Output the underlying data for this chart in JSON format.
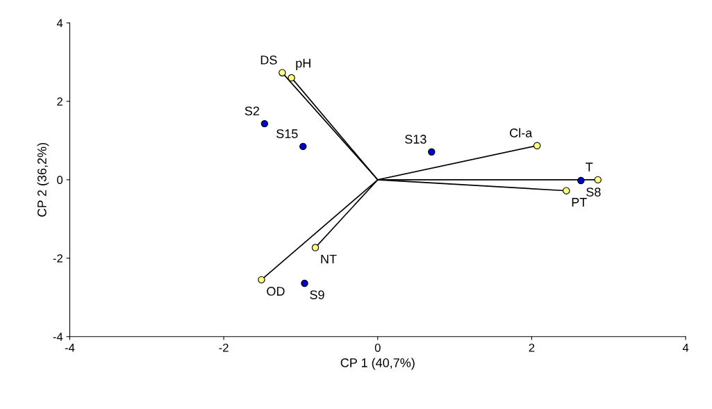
{
  "chart_data": {
    "type": "scatter",
    "xlabel": "CP 1 (40,7%)",
    "ylabel": "CP 2 (36,2%)",
    "xlim": [
      -4,
      4
    ],
    "ylim": [
      -4,
      4
    ],
    "xticks": [
      -4,
      -2,
      0,
      2,
      4
    ],
    "yticks": [
      -4,
      -2,
      0,
      2,
      4
    ],
    "grid": false,
    "marker": "circle",
    "series": [
      {
        "type": "line",
        "color": "#000000",
        "marker": "none",
        "x": [
          0,
          -1.24
        ],
        "values": [
          0,
          2.73
        ]
      },
      {
        "type": "line",
        "color": "#000000",
        "marker": "none",
        "x": [
          0,
          -1.12
        ],
        "values": [
          0,
          2.6
        ]
      },
      {
        "type": "line",
        "color": "#000000",
        "marker": "none",
        "x": [
          0,
          2.07
        ],
        "values": [
          0,
          0.87
        ]
      },
      {
        "type": "line",
        "color": "#000000",
        "marker": "none",
        "x": [
          0,
          2.86
        ],
        "values": [
          0,
          0.0
        ]
      },
      {
        "type": "line",
        "color": "#000000",
        "marker": "none",
        "x": [
          0,
          2.45
        ],
        "values": [
          0,
          -0.28
        ]
      },
      {
        "type": "line",
        "color": "#000000",
        "marker": "none",
        "x": [
          0,
          -0.81
        ],
        "values": [
          0,
          -1.73
        ]
      },
      {
        "type": "line",
        "color": "#000000",
        "marker": "none",
        "x": [
          0,
          -1.51
        ],
        "values": [
          0,
          -2.55
        ]
      },
      {
        "color": "#0000cc",
        "x": [
          -1.47,
          -0.97,
          0.7,
          2.64,
          -0.95
        ],
        "values": [
          1.43,
          0.85,
          0.71,
          -0.02,
          -2.64
        ]
      },
      {
        "color": "#ffff80",
        "x": [
          -1.24,
          -1.12,
          2.07,
          2.86,
          2.45,
          -0.81,
          -1.51
        ],
        "values": [
          2.73,
          2.6,
          0.87,
          0.0,
          -0.28,
          -1.73,
          -2.55
        ]
      }
    ],
    "annotations": [
      {
        "text": "DS",
        "x": -1.24,
        "y": 2.73
      },
      {
        "text": "pH",
        "x": -1.12,
        "y": 2.6
      },
      {
        "text": "S2",
        "x": -1.47,
        "y": 1.43
      },
      {
        "text": "S15",
        "x": -0.97,
        "y": 0.85
      },
      {
        "text": "S13",
        "x": 0.7,
        "y": 0.71
      },
      {
        "text": "Cl-a",
        "x": 2.07,
        "y": 0.87
      },
      {
        "text": "T",
        "x": 2.86,
        "y": 0.0
      },
      {
        "text": "S8",
        "x": 2.64,
        "y": -0.02
      },
      {
        "text": "PT",
        "x": 2.45,
        "y": -0.28
      },
      {
        "text": "NT",
        "x": -0.81,
        "y": -1.73
      },
      {
        "text": "OD",
        "x": -1.51,
        "y": -2.55
      },
      {
        "text": "S9",
        "x": -0.95,
        "y": -2.64
      }
    ]
  }
}
